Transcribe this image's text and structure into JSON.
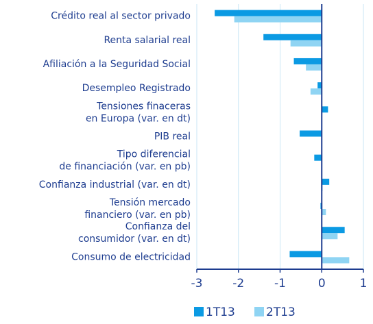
{
  "chart_data": {
    "type": "hbar",
    "categories": [
      [
        "Crédito real al sector privado"
      ],
      [
        "Renta salarial real"
      ],
      [
        "Afiliación a la Seguridad Social"
      ],
      [
        "Desempleo Registrado"
      ],
      [
        "Tensiones finaceras",
        "en Europa  (var. en dt)"
      ],
      [
        "PIB real"
      ],
      [
        "Tipo diferencial",
        "de financiación (var. en pb)"
      ],
      [
        "Confianza industrial (var. en dt)"
      ],
      [
        "Tensión mercado",
        "financiero (var. en pb)"
      ],
      [
        "Confianza del",
        "consumidor (var. en dt)"
      ],
      [
        "Consumo de electricidad"
      ]
    ],
    "series": [
      {
        "name": "1T13",
        "color": "#0b9ae3",
        "values": [
          -2.57,
          -1.4,
          -0.67,
          -0.1,
          0.15,
          -0.53,
          -0.18,
          0.18,
          -0.03,
          0.55,
          -0.77
        ]
      },
      {
        "name": "2T13",
        "color": "#8fd4f3",
        "values": [
          -2.1,
          -0.75,
          -0.38,
          -0.27,
          0,
          0,
          0,
          0.02,
          0.1,
          0.38,
          0.66
        ]
      }
    ],
    "xlim": [
      -3,
      1
    ],
    "xticks": [
      -3,
      -2,
      -1,
      0,
      1
    ],
    "grid": true
  }
}
